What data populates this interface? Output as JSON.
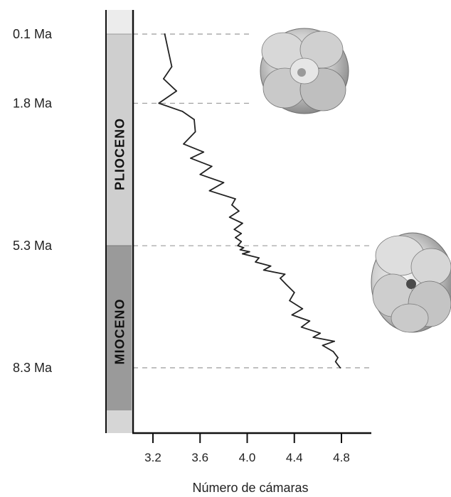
{
  "chart_data": {
    "type": "line",
    "title": "",
    "xlabel": "Número de cámaras",
    "ylabel": "",
    "xlim": [
      3.05,
      4.95
    ],
    "ylim_ma": [
      0.1,
      8.3
    ],
    "x_ticks": [
      "3.2",
      "3.6",
      "4.0",
      "4.4",
      "4.8"
    ],
    "x_tick_values": [
      3.2,
      3.6,
      4.0,
      4.4,
      4.8
    ],
    "age_markers": [
      {
        "label": "0.1 Ma",
        "ma": 0.1
      },
      {
        "label": "1.8 Ma",
        "ma": 1.8
      },
      {
        "label": "5.3 Ma",
        "ma": 5.3
      },
      {
        "label": "8.3 Ma",
        "ma": 8.3
      }
    ],
    "epochs": [
      {
        "label": "PLIOCENO",
        "from_ma": 0.1,
        "to_ma": 5.3,
        "color": "#cfcfcf"
      },
      {
        "label": "MIOCENO",
        "from_ma": 5.3,
        "to_ma": 8.3,
        "color": "#9a9a9a"
      }
    ],
    "grid": "dashed at age markers",
    "series": [
      {
        "x": [
          3.3,
          3.33,
          3.36,
          3.29,
          3.4,
          3.25,
          3.45,
          3.55,
          3.56,
          3.46,
          3.63,
          3.52,
          3.7,
          3.6,
          3.8,
          3.68,
          3.9,
          3.87,
          3.93,
          3.85,
          3.96,
          3.89,
          3.95,
          3.9,
          3.95,
          3.92,
          3.97,
          3.94,
          4.02,
          3.96,
          4.1,
          4.07,
          4.2,
          4.14,
          4.32,
          4.28,
          4.33,
          4.4,
          4.36,
          4.47,
          4.38,
          4.53,
          4.46,
          4.62,
          4.56,
          4.74,
          4.64,
          4.73,
          4.77,
          4.75,
          4.79
        ],
        "ma": [
          0.1,
          0.5,
          0.9,
          1.2,
          1.5,
          1.8,
          2.0,
          2.2,
          2.5,
          2.8,
          3.0,
          3.15,
          3.35,
          3.55,
          3.75,
          3.95,
          4.15,
          4.3,
          4.45,
          4.6,
          4.75,
          4.9,
          5.0,
          5.1,
          5.2,
          5.3,
          5.35,
          5.4,
          5.45,
          5.5,
          5.6,
          5.7,
          5.8,
          5.9,
          6.0,
          6.1,
          6.25,
          6.45,
          6.65,
          6.85,
          7.0,
          7.15,
          7.3,
          7.45,
          7.55,
          7.65,
          7.75,
          7.9,
          8.05,
          8.15,
          8.3
        ]
      }
    ]
  },
  "colors": {
    "line": "#222222",
    "axis": "#111111",
    "grid": "#9a9a9a"
  },
  "icons": [
    "foraminifera-shell-pliocene",
    "foraminifera-shell-miocene"
  ]
}
